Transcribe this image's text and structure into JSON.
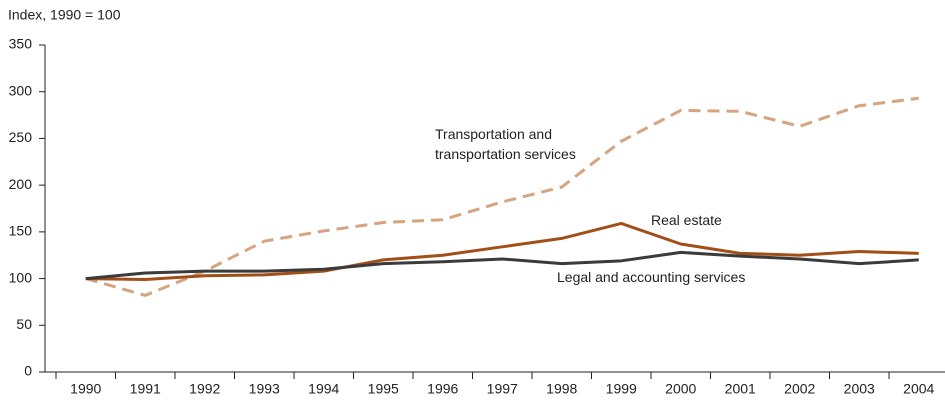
{
  "chart_data": {
    "type": "line",
    "y_axis_label": "Index, 1990 = 100",
    "categories": [
      "1990",
      "1991",
      "1992",
      "1993",
      "1994",
      "1995",
      "1996",
      "1997",
      "1998",
      "1999",
      "2000",
      "2001",
      "2002",
      "2003",
      "2004"
    ],
    "ylim": [
      0,
      350
    ],
    "yticks": [
      0,
      50,
      100,
      150,
      200,
      250,
      300,
      350
    ],
    "series": [
      {
        "name": "Transportation and transportation services",
        "color": "#d6a480",
        "dashed": true,
        "values": [
          100,
          82,
          108,
          140,
          151,
          160,
          163,
          182,
          198,
          247,
          280,
          279,
          263,
          285,
          293
        ]
      },
      {
        "name": "Real estate",
        "color": "#a24f17",
        "dashed": false,
        "values": [
          100,
          99,
          103,
          104,
          108,
          120,
          125,
          134,
          143,
          159,
          137,
          127,
          125,
          129,
          127
        ]
      },
      {
        "name": "Legal and accounting services",
        "color": "#3b3b3b",
        "dashed": false,
        "values": [
          100,
          106,
          108,
          108,
          110,
          116,
          118,
          121,
          116,
          119,
          128,
          124,
          121,
          116,
          120
        ]
      }
    ]
  }
}
